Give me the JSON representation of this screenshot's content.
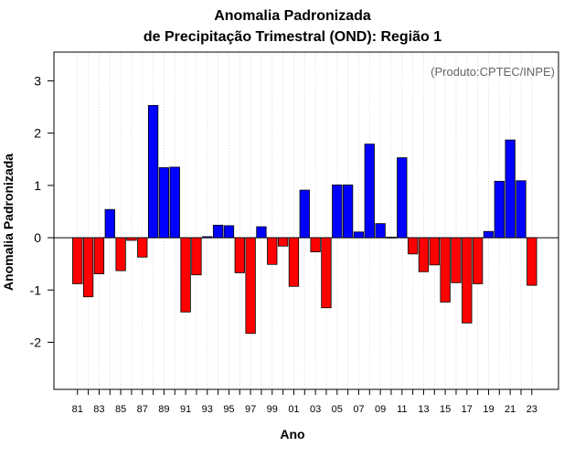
{
  "chart_data": {
    "type": "bar",
    "title": "Anomalia Padronizada",
    "subtitle": "de Precipitação Trimestral (OND): Região 1",
    "xlabel": "Ano",
    "ylabel": "Anomalia Padronizada",
    "annotation": "(Produto:CPTEC/INPE)",
    "ylim": [
      -2.9,
      3.55
    ],
    "yticks": [
      -2,
      -1,
      0,
      1,
      2,
      3
    ],
    "grid": "vertical dotted",
    "positive_color": "#0000ff",
    "negative_color": "#ff0000",
    "categories": [
      "81",
      "82",
      "83",
      "84",
      "85",
      "86",
      "87",
      "88",
      "89",
      "90",
      "91",
      "92",
      "93",
      "94",
      "95",
      "96",
      "97",
      "98",
      "99",
      "00",
      "01",
      "02",
      "03",
      "04",
      "05",
      "06",
      "07",
      "08",
      "09",
      "10",
      "11",
      "12",
      "13",
      "14",
      "15",
      "16",
      "17",
      "18",
      "19",
      "20",
      "21",
      "22",
      "23"
    ],
    "x_tick_labels": [
      "81",
      "83",
      "85",
      "87",
      "89",
      "91",
      "93",
      "95",
      "97",
      "99",
      "01",
      "03",
      "05",
      "07",
      "09",
      "11",
      "13",
      "15",
      "17",
      "19",
      "21",
      "23"
    ],
    "values": [
      -0.88,
      -1.13,
      -0.69,
      0.54,
      -0.63,
      -0.05,
      -0.37,
      2.53,
      1.34,
      1.35,
      -1.42,
      -0.71,
      0.02,
      0.24,
      0.23,
      -0.67,
      -1.83,
      0.21,
      -0.51,
      -0.16,
      -0.93,
      0.91,
      -0.27,
      -1.34,
      1.01,
      1.01,
      0.11,
      1.79,
      0.27,
      0.01,
      1.53,
      -0.31,
      -0.65,
      -0.52,
      -1.23,
      -0.86,
      -1.63,
      -0.88,
      0.12,
      1.08,
      1.87,
      1.09,
      -0.91
    ]
  }
}
